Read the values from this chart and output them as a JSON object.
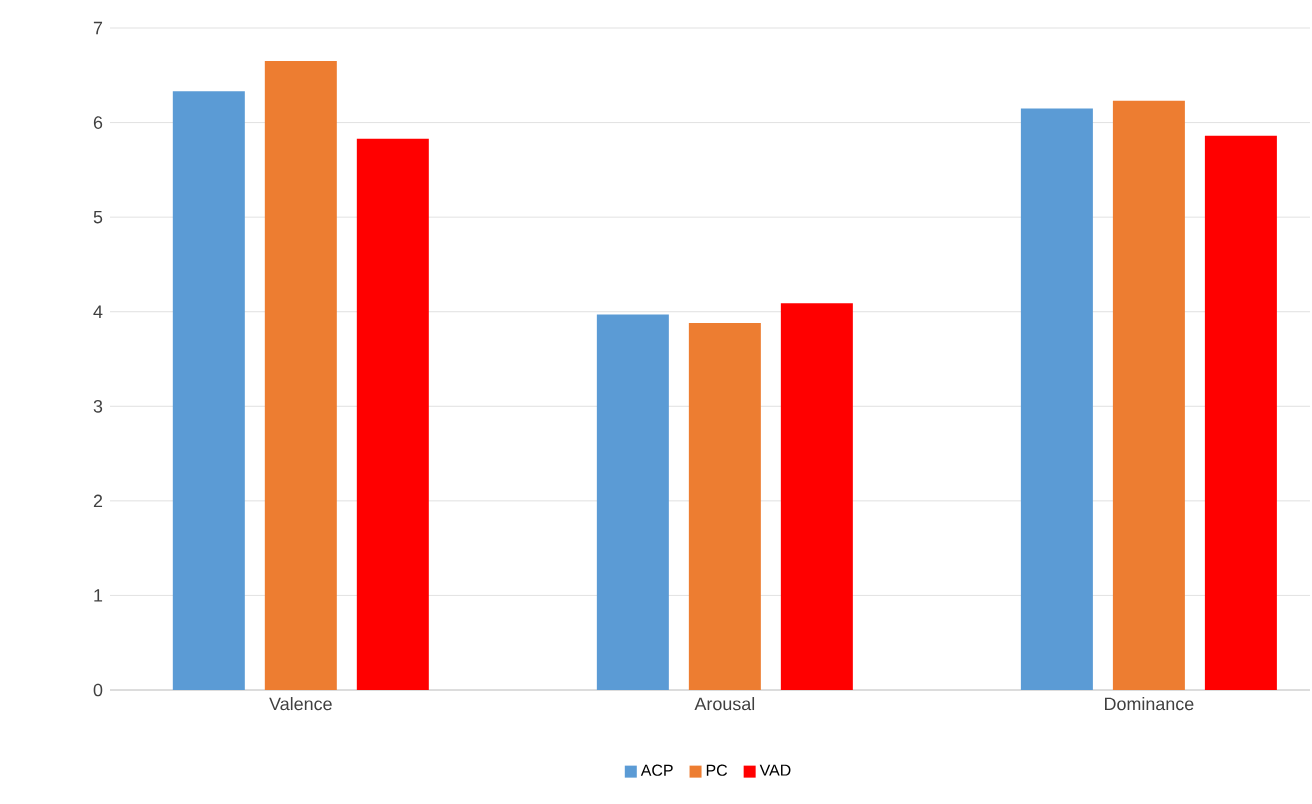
{
  "chart_data": {
    "type": "bar",
    "categories": [
      "Valence",
      "Arousal",
      "Dominance"
    ],
    "series": [
      {
        "name": "ACP",
        "color": "#5b9bd5",
        "values": [
          6.33,
          3.97,
          6.15
        ]
      },
      {
        "name": "PC",
        "color": "#ed7d31",
        "values": [
          6.65,
          3.88,
          6.23
        ]
      },
      {
        "name": "VAD",
        "color": "#ff0000",
        "values": [
          5.83,
          4.09,
          5.86
        ]
      }
    ],
    "ylim": [
      0,
      7
    ],
    "yticks": [
      0,
      1,
      2,
      3,
      4,
      5,
      6,
      7
    ],
    "grid": "y",
    "legend": "bottom"
  }
}
